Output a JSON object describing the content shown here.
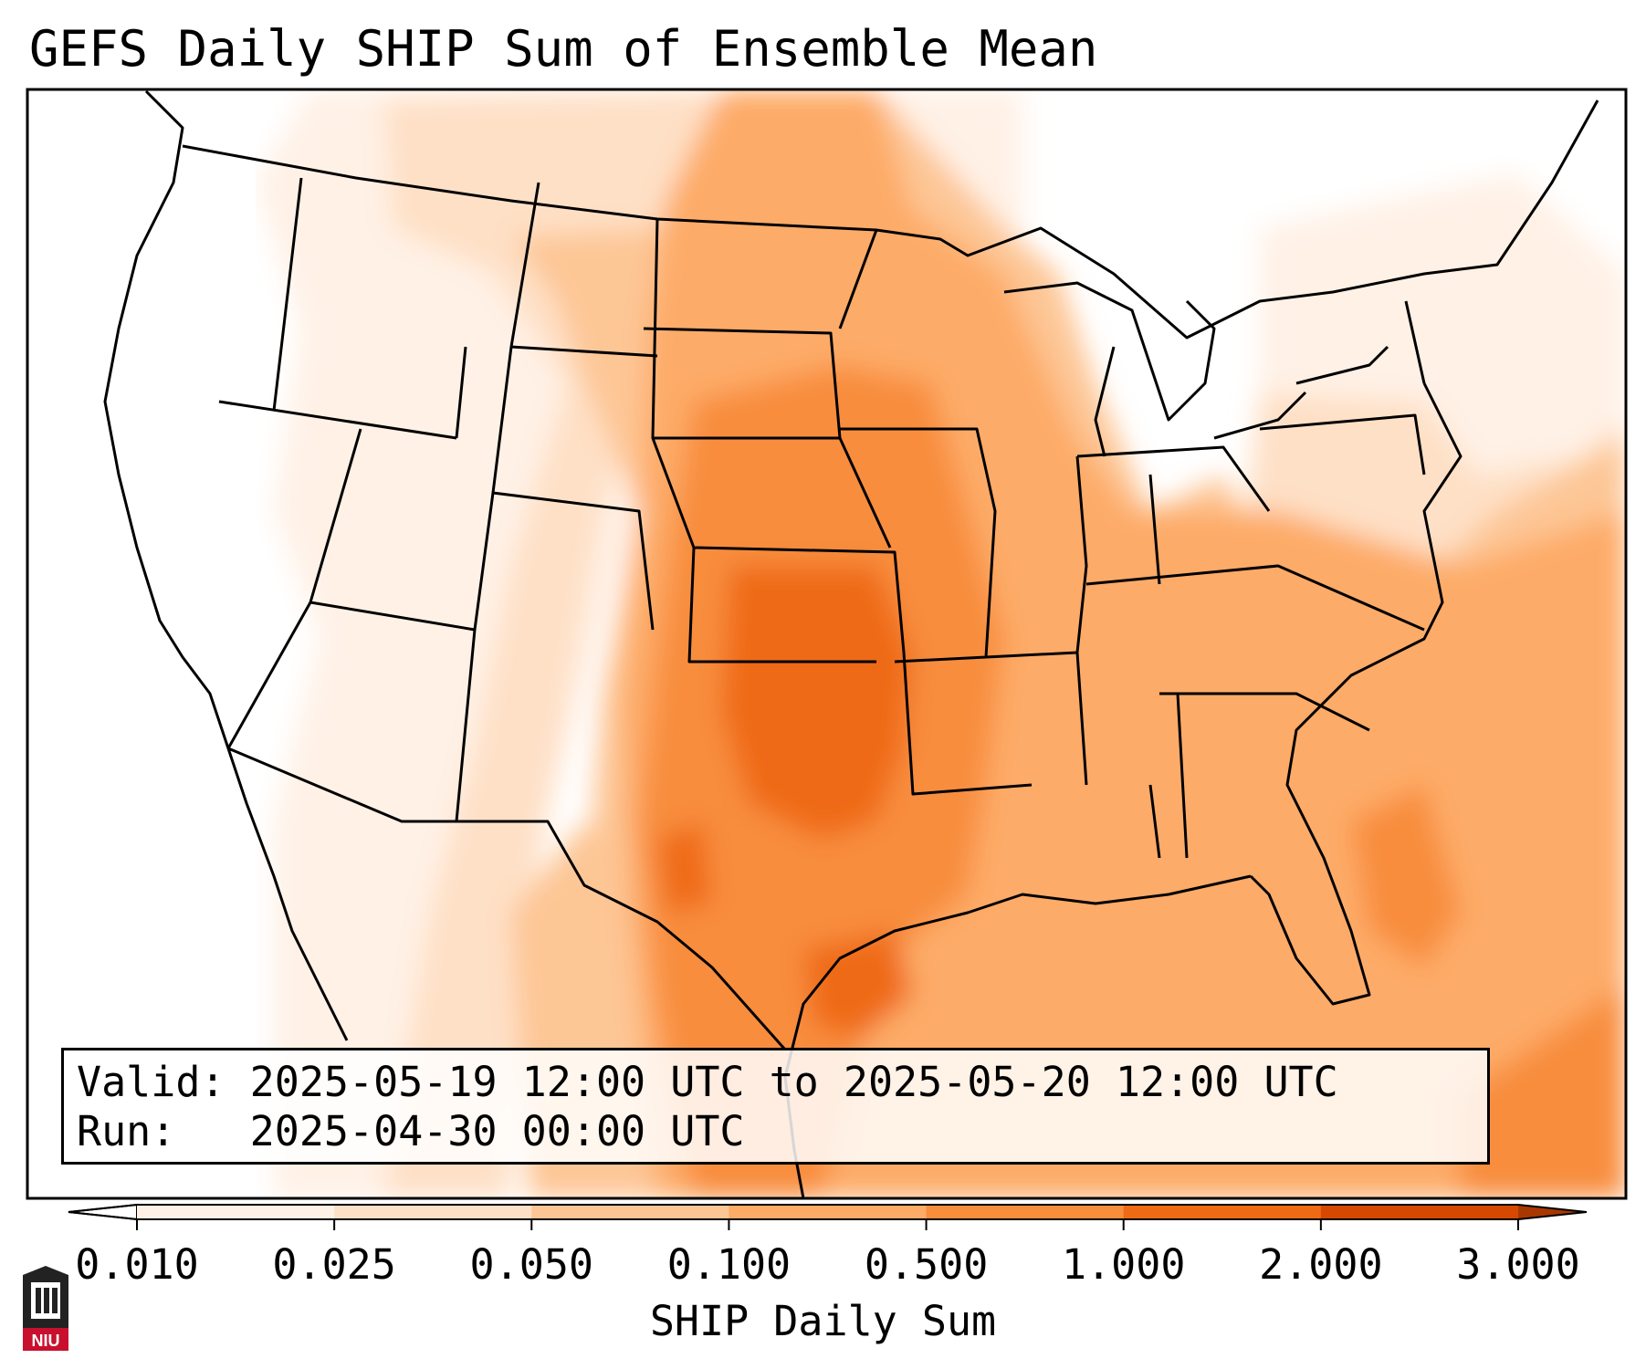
{
  "title": "GEFS Daily SHIP Sum of Ensemble Mean",
  "info": {
    "valid_label": "Valid:",
    "valid_value": "2025-05-19 12:00 UTC to 2025-05-20 12:00 UTC",
    "run_label": "Run:",
    "run_value": "2025-04-30 00:00 UTC"
  },
  "colorbar": {
    "label": "SHIP Daily Sum",
    "ticks": [
      "0.010",
      "0.025",
      "0.050",
      "0.100",
      "0.500",
      "1.000",
      "2.000",
      "3.000"
    ],
    "colors": [
      "#fff1e6",
      "#fee0c6",
      "#fdc695",
      "#fdab67",
      "#f88d3c",
      "#ef6a14",
      "#d44800"
    ],
    "extend": "both"
  },
  "logo": {
    "text": "NIU",
    "color": "#c8102e"
  },
  "map": {
    "projection": "Lambert conformal",
    "region": "Contiguous United States, southern Canada, northern Mexico",
    "field_max_region": "Kansas and Oklahoma"
  }
}
